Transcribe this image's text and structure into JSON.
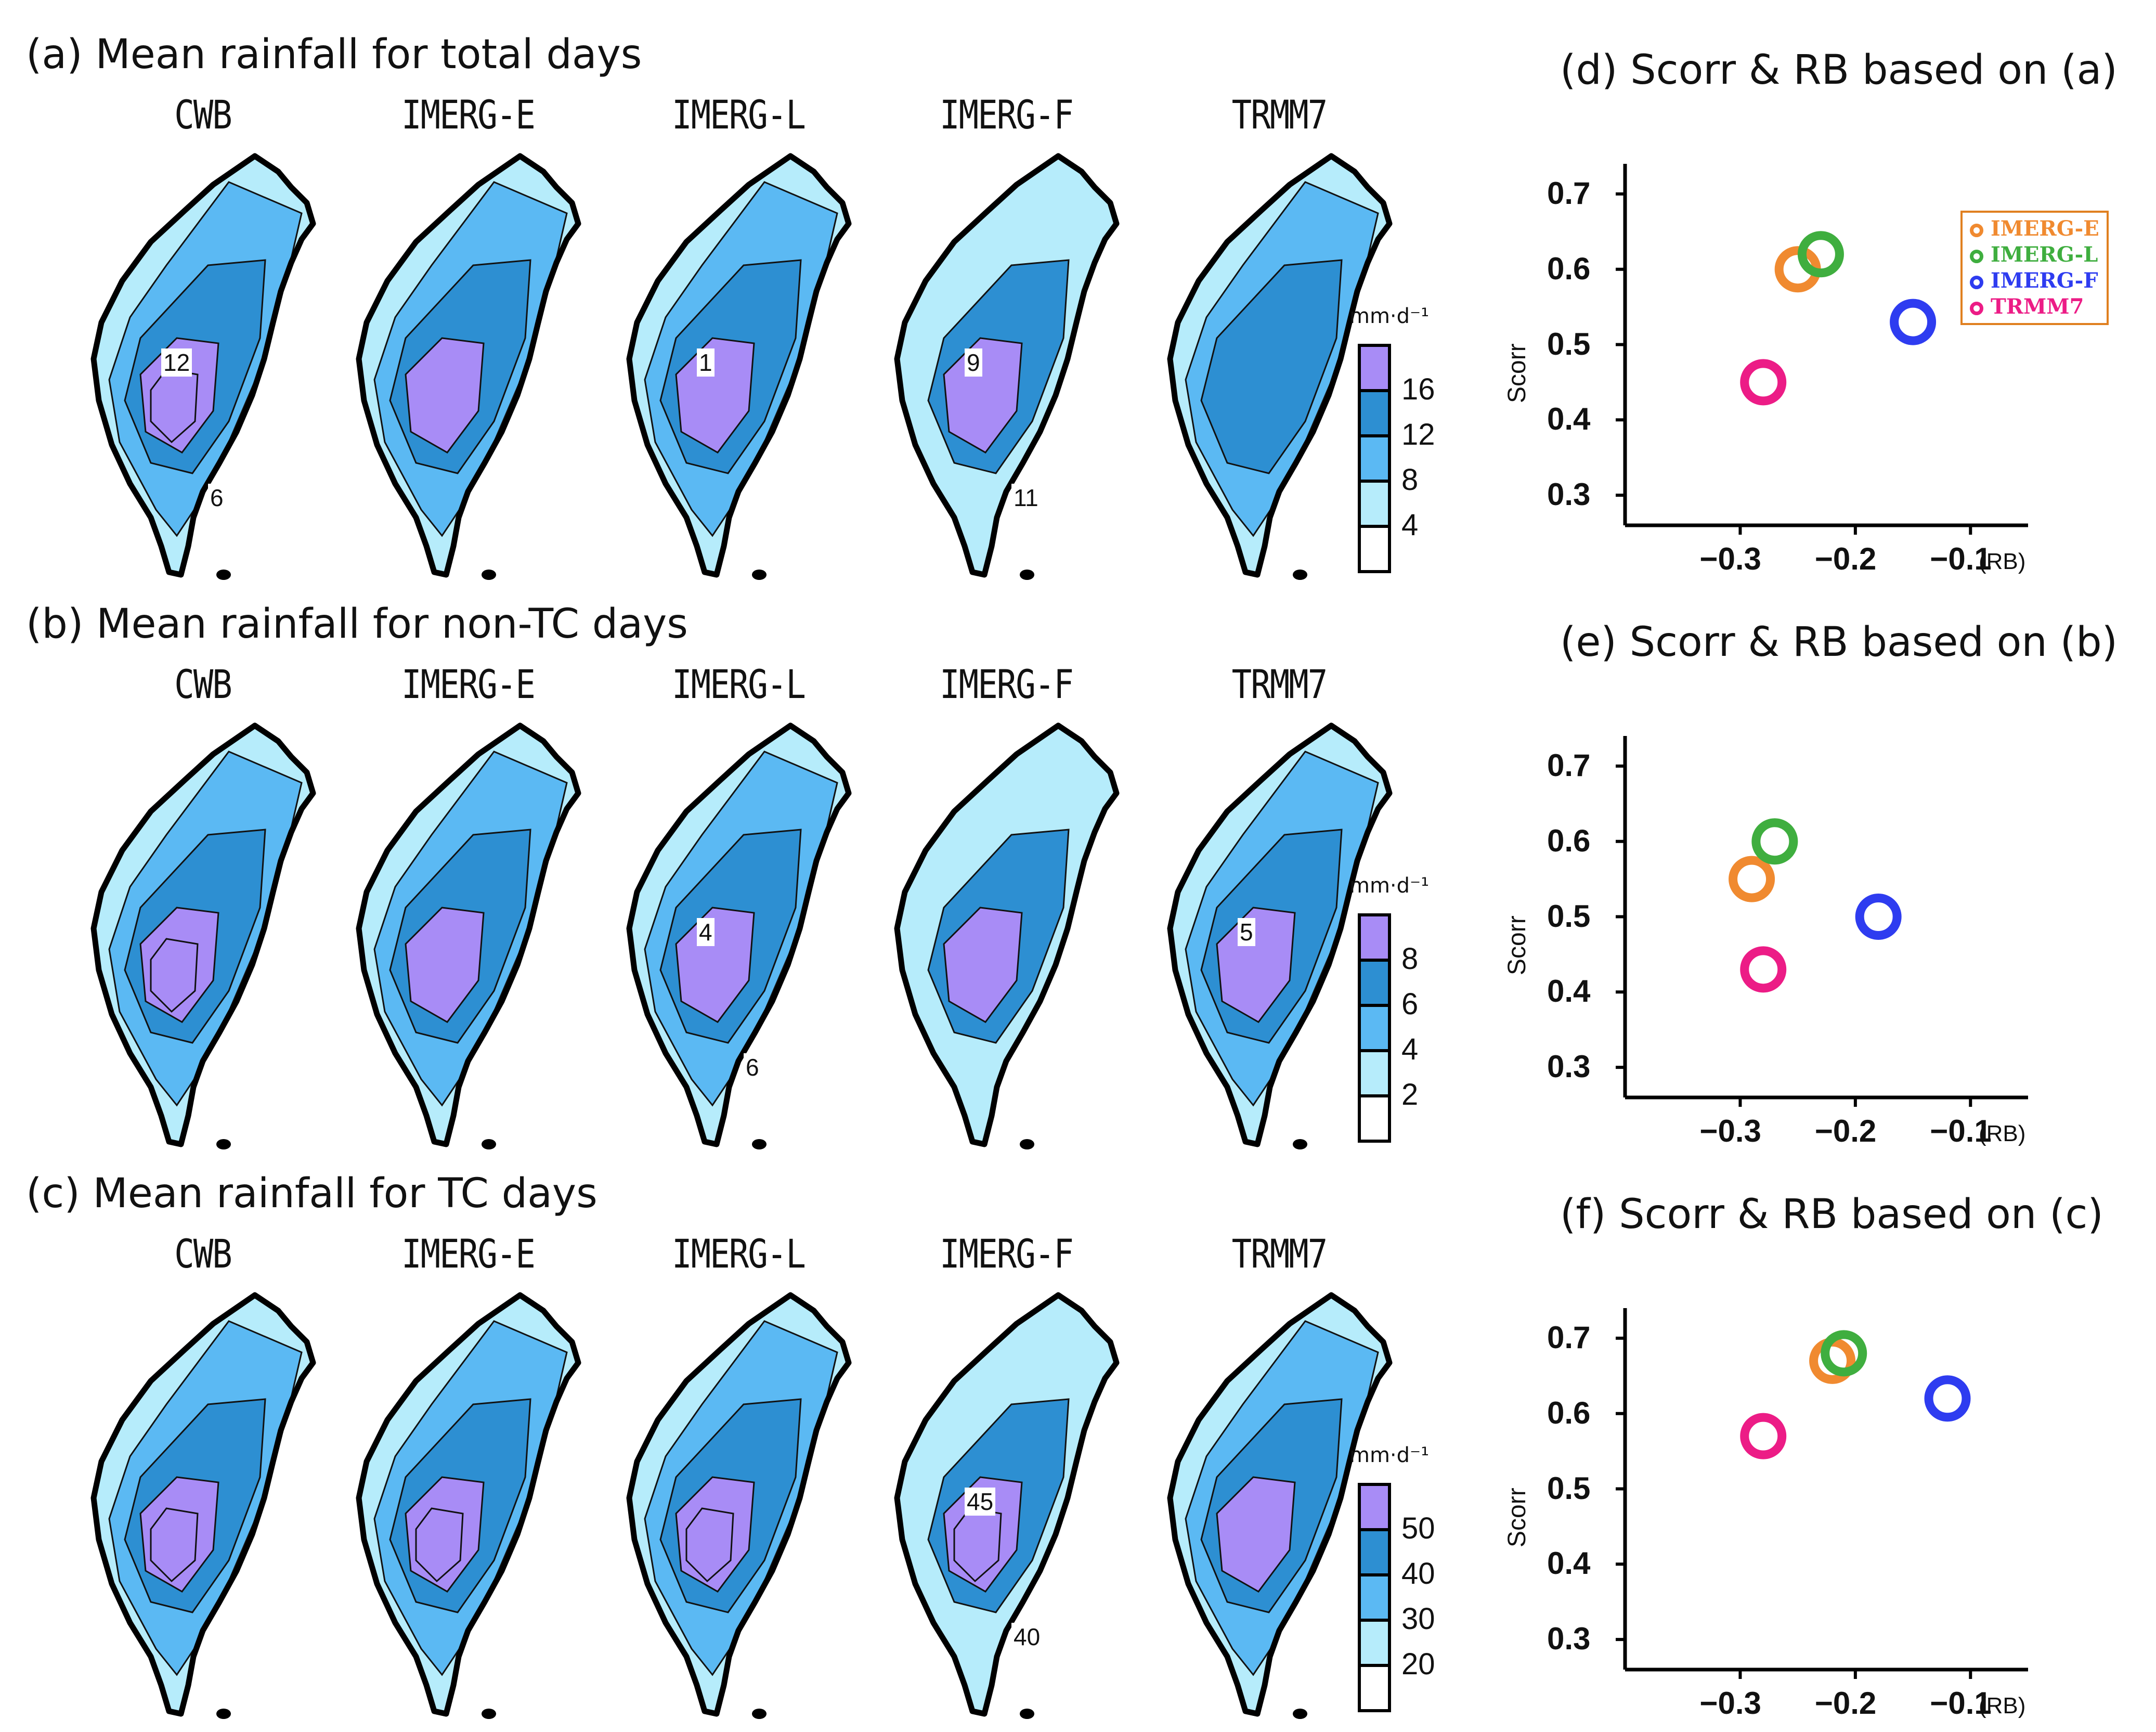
{
  "rows": [
    {
      "id": "a",
      "title": "(a) Mean rainfall for total days",
      "unit": "mm·d⁻¹",
      "colorbar_ticks": [
        "16",
        "12",
        "8",
        "4"
      ],
      "maps": [
        {
          "label": "CWB",
          "levels": [
            0,
            1,
            2,
            3,
            4
          ],
          "tags": [
            "12",
            "6"
          ]
        },
        {
          "label": "IMERG-E",
          "levels": [
            1,
            2,
            3
          ],
          "tags": []
        },
        {
          "label": "IMERG-L",
          "levels": [
            1,
            2,
            3
          ],
          "tags": [
            "1"
          ]
        },
        {
          "label": "IMERG-F",
          "levels": [
            2,
            3
          ],
          "tags": [
            "9",
            "11"
          ]
        },
        {
          "label": "TRMM7",
          "levels": [
            1,
            2
          ],
          "tags": []
        }
      ]
    },
    {
      "id": "b",
      "title": "(b) Mean rainfall for non-TC days",
      "unit": "mm·d⁻¹",
      "colorbar_ticks": [
        "8",
        "6",
        "4",
        "2"
      ],
      "maps": [
        {
          "label": "CWB",
          "levels": [
            1,
            2,
            3,
            4
          ],
          "tags": []
        },
        {
          "label": "IMERG-E",
          "levels": [
            1,
            2,
            3
          ],
          "tags": []
        },
        {
          "label": "IMERG-L",
          "levels": [
            1,
            2,
            3
          ],
          "tags": [
            "4",
            "6"
          ]
        },
        {
          "label": "IMERG-F",
          "levels": [
            2,
            3
          ],
          "tags": []
        },
        {
          "label": "TRMM7",
          "levels": [
            1,
            2,
            3
          ],
          "tags": [
            "5"
          ]
        }
      ]
    },
    {
      "id": "c",
      "title": "(c) Mean rainfall for TC days",
      "unit": "mm·d⁻¹",
      "colorbar_ticks": [
        "50",
        "40",
        "30",
        "20"
      ],
      "maps": [
        {
          "label": "CWB",
          "levels": [
            1,
            2,
            3,
            4
          ],
          "tags": []
        },
        {
          "label": "IMERG-E",
          "levels": [
            1,
            2,
            3,
            4
          ],
          "tags": []
        },
        {
          "label": "IMERG-L",
          "levels": [
            1,
            2,
            3,
            4
          ],
          "tags": []
        },
        {
          "label": "IMERG-F",
          "levels": [
            2,
            3,
            4
          ],
          "tags": [
            "45",
            "40"
          ]
        },
        {
          "label": "TRMM7",
          "levels": [
            1,
            2,
            3
          ],
          "tags": []
        }
      ]
    }
  ],
  "colorbar_colors": [
    "#ffffff",
    "#b6ecfb",
    "#5bb9f3",
    "#2d8fd2",
    "#a88cf6"
  ],
  "chart_data": [
    {
      "type": "scatter",
      "title": "(d) Scorr & RB based on (a)",
      "xlabel": "(RB)",
      "ylabel": "Scorr",
      "xticks": [
        "−0.3",
        "−0.2",
        "−0.1"
      ],
      "yticks": [
        "0.7",
        "0.6",
        "0.5",
        "0.4",
        "0.3"
      ],
      "xlim": [
        -0.4,
        -0.05
      ],
      "ylim": [
        0.26,
        0.74
      ],
      "series": [
        {
          "name": "IMERG-E",
          "color": "#f08a30",
          "x": -0.25,
          "y": 0.6
        },
        {
          "name": "IMERG-L",
          "color": "#3fae3f",
          "x": -0.23,
          "y": 0.62
        },
        {
          "name": "IMERG-F",
          "color": "#2e3cf0",
          "x": -0.15,
          "y": 0.53
        },
        {
          "name": "TRMM7",
          "color": "#ec1c86",
          "x": -0.28,
          "y": 0.45
        }
      ],
      "legend": true
    },
    {
      "type": "scatter",
      "title": "(e) Scorr & RB based on (b)",
      "xlabel": "(RB)",
      "ylabel": "Scorr",
      "xticks": [
        "−0.3",
        "−0.2",
        "−0.1"
      ],
      "yticks": [
        "0.7",
        "0.6",
        "0.5",
        "0.4",
        "0.3"
      ],
      "xlim": [
        -0.4,
        -0.05
      ],
      "ylim": [
        0.26,
        0.74
      ],
      "series": [
        {
          "name": "IMERG-E",
          "color": "#f08a30",
          "x": -0.29,
          "y": 0.55
        },
        {
          "name": "IMERG-L",
          "color": "#3fae3f",
          "x": -0.27,
          "y": 0.6
        },
        {
          "name": "IMERG-F",
          "color": "#2e3cf0",
          "x": -0.18,
          "y": 0.5
        },
        {
          "name": "TRMM7",
          "color": "#ec1c86",
          "x": -0.28,
          "y": 0.43
        }
      ],
      "legend": false
    },
    {
      "type": "scatter",
      "title": "(f) Scorr & RB based on (c)",
      "xlabel": "(RB)",
      "ylabel": "Scorr",
      "xticks": [
        "−0.3",
        "−0.2",
        "−0.1"
      ],
      "yticks": [
        "0.7",
        "0.6",
        "0.5",
        "0.4",
        "0.3"
      ],
      "xlim": [
        -0.4,
        -0.05
      ],
      "ylim": [
        0.26,
        0.74
      ],
      "series": [
        {
          "name": "IMERG-E",
          "color": "#f08a30",
          "x": -0.22,
          "y": 0.67
        },
        {
          "name": "IMERG-L",
          "color": "#3fae3f",
          "x": -0.21,
          "y": 0.68
        },
        {
          "name": "IMERG-F",
          "color": "#2e3cf0",
          "x": -0.12,
          "y": 0.62
        },
        {
          "name": "TRMM7",
          "color": "#ec1c86",
          "x": -0.28,
          "y": 0.57
        }
      ],
      "legend": false
    }
  ]
}
